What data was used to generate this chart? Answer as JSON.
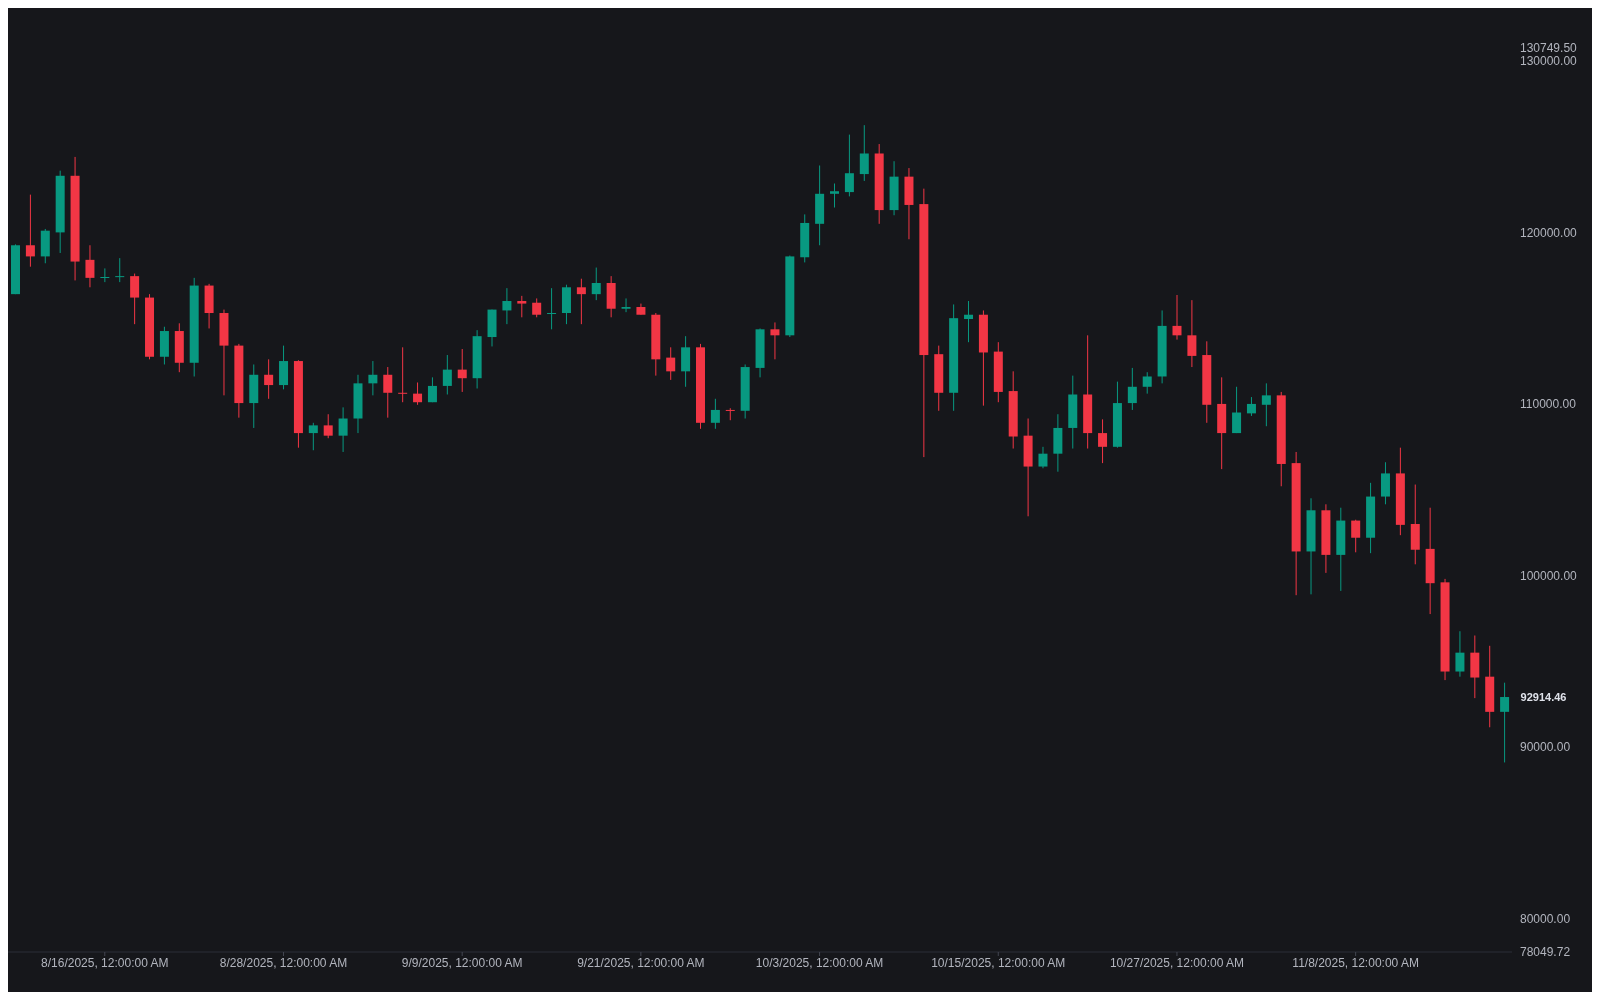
{
  "chart_data": {
    "type": "candlestick",
    "x": [
      "2025-08-10",
      "2025-08-11",
      "2025-08-12",
      "2025-08-13",
      "2025-08-14",
      "2025-08-15",
      "2025-08-16",
      "2025-08-17",
      "2025-08-18",
      "2025-08-19",
      "2025-08-20",
      "2025-08-21",
      "2025-08-22",
      "2025-08-23",
      "2025-08-24",
      "2025-08-25",
      "2025-08-26",
      "2025-08-27",
      "2025-08-28",
      "2025-08-29",
      "2025-08-30",
      "2025-08-31",
      "2025-09-01",
      "2025-09-02",
      "2025-09-03",
      "2025-09-04",
      "2025-09-05",
      "2025-09-06",
      "2025-09-07",
      "2025-09-08",
      "2025-09-09",
      "2025-09-10",
      "2025-09-11",
      "2025-09-12",
      "2025-09-13",
      "2025-09-14",
      "2025-09-15",
      "2025-09-16",
      "2025-09-17",
      "2025-09-18",
      "2025-09-19",
      "2025-09-20",
      "2025-09-21",
      "2025-09-22",
      "2025-09-23",
      "2025-09-24",
      "2025-09-25",
      "2025-09-26",
      "2025-09-27",
      "2025-09-28",
      "2025-09-29",
      "2025-09-30",
      "2025-10-01",
      "2025-10-02",
      "2025-10-03",
      "2025-10-04",
      "2025-10-05",
      "2025-10-06",
      "2025-10-07",
      "2025-10-08",
      "2025-10-09",
      "2025-10-10",
      "2025-10-11",
      "2025-10-12",
      "2025-10-13",
      "2025-10-14",
      "2025-10-15",
      "2025-10-16",
      "2025-10-17",
      "2025-10-18",
      "2025-10-19",
      "2025-10-20",
      "2025-10-21",
      "2025-10-22",
      "2025-10-23",
      "2025-10-24",
      "2025-10-25",
      "2025-10-26",
      "2025-10-27",
      "2025-10-28",
      "2025-10-29",
      "2025-10-30",
      "2025-10-31",
      "2025-11-01",
      "2025-11-02",
      "2025-11-03",
      "2025-11-04",
      "2025-11-05",
      "2025-11-06",
      "2025-11-07",
      "2025-11-08",
      "2025-11-09",
      "2025-11-10",
      "2025-11-11",
      "2025-11-12",
      "2025-11-13",
      "2025-11-14",
      "2025-11-15",
      "2025-11-16",
      "2025-11-17",
      "2025-11-18"
    ],
    "ohlc": [
      [
        116400,
        119300,
        116400,
        119250
      ],
      [
        119250,
        122200,
        118000,
        118600
      ],
      [
        118600,
        120200,
        118200,
        120100
      ],
      [
        120000,
        123600,
        118800,
        123300
      ],
      [
        123300,
        124400,
        117200,
        118300
      ],
      [
        118400,
        119250,
        116800,
        117350
      ],
      [
        117350,
        117900,
        117100,
        117400
      ],
      [
        117400,
        118500,
        117100,
        117450
      ],
      [
        117450,
        117600,
        114650,
        116200
      ],
      [
        116200,
        116400,
        112600,
        112750
      ],
      [
        112750,
        114500,
        112300,
        114250
      ],
      [
        114250,
        114700,
        111850,
        112400
      ],
      [
        112400,
        117350,
        111600,
        116900
      ],
      [
        116900,
        117000,
        114400,
        115300
      ],
      [
        115300,
        115500,
        110500,
        113400
      ],
      [
        113400,
        113500,
        109200,
        110050
      ],
      [
        110050,
        112300,
        108600,
        111700
      ],
      [
        111700,
        112600,
        110300,
        111100
      ],
      [
        111100,
        113400,
        110850,
        112500
      ],
      [
        112500,
        112550,
        107450,
        108300
      ],
      [
        108300,
        108900,
        107300,
        108750
      ],
      [
        108750,
        109400,
        108000,
        108150
      ],
      [
        108150,
        109800,
        107200,
        109150
      ],
      [
        109150,
        111700,
        108300,
        111200
      ],
      [
        111200,
        112500,
        110500,
        111700
      ],
      [
        111700,
        112150,
        109200,
        110650
      ],
      [
        110650,
        113300,
        110100,
        110600
      ],
      [
        110600,
        111250,
        109950,
        110100
      ],
      [
        110100,
        111550,
        110100,
        111050
      ],
      [
        111050,
        112850,
        110550,
        112000
      ],
      [
        112000,
        113200,
        110700,
        111500
      ],
      [
        111500,
        114300,
        110900,
        113950
      ],
      [
        113900,
        115500,
        113350,
        115500
      ],
      [
        115450,
        116750,
        114650,
        116000
      ],
      [
        116000,
        116300,
        115050,
        115850
      ],
      [
        115900,
        116150,
        115050,
        115200
      ],
      [
        115250,
        116750,
        114350,
        115300
      ],
      [
        115300,
        116950,
        114650,
        116800
      ],
      [
        116800,
        117300,
        114650,
        116400
      ],
      [
        116400,
        117950,
        116050,
        117050
      ],
      [
        117050,
        117450,
        115050,
        115550
      ],
      [
        115550,
        116150,
        115350,
        115650
      ],
      [
        115650,
        115850,
        115200,
        115200
      ],
      [
        115200,
        115300,
        111650,
        112600
      ],
      [
        112700,
        113300,
        111400,
        111900
      ],
      [
        111900,
        113950,
        111000,
        113300
      ],
      [
        113300,
        113500,
        108550,
        108900
      ],
      [
        108900,
        110300,
        108550,
        109650
      ],
      [
        109650,
        109750,
        109050,
        109600
      ],
      [
        109600,
        112300,
        109150,
        112150
      ],
      [
        112100,
        114400,
        111550,
        114350
      ],
      [
        114350,
        114750,
        112600,
        114000
      ],
      [
        114000,
        118650,
        113900,
        118600
      ],
      [
        118550,
        121050,
        118250,
        120550
      ],
      [
        120500,
        123900,
        119250,
        122250
      ],
      [
        122250,
        122850,
        121450,
        122400
      ],
      [
        122350,
        125700,
        122100,
        123450
      ],
      [
        123400,
        126250,
        123000,
        124600
      ],
      [
        124600,
        125150,
        120500,
        121300
      ],
      [
        121300,
        124150,
        121000,
        123250
      ],
      [
        123250,
        123750,
        119600,
        121600
      ],
      [
        121650,
        122550,
        106900,
        112850
      ],
      [
        112900,
        113400,
        109600,
        110650
      ],
      [
        110650,
        115800,
        109600,
        115000
      ],
      [
        114950,
        116000,
        113600,
        115200
      ],
      [
        115200,
        115450,
        109900,
        113000
      ],
      [
        113050,
        113600,
        110100,
        110700
      ],
      [
        110750,
        111900,
        107400,
        108100
      ],
      [
        108150,
        109150,
        103450,
        106350
      ],
      [
        106350,
        107500,
        106250,
        107100
      ],
      [
        107100,
        109400,
        106050,
        108600
      ],
      [
        108600,
        111650,
        107400,
        110550
      ],
      [
        110550,
        114000,
        107400,
        108300
      ],
      [
        108300,
        109100,
        106550,
        107500
      ],
      [
        107500,
        111300,
        107450,
        110050
      ],
      [
        110050,
        112100,
        109650,
        111000
      ],
      [
        111000,
        111850,
        110600,
        111600
      ],
      [
        111600,
        115450,
        111200,
        114550
      ],
      [
        114550,
        116350,
        113750,
        114000
      ],
      [
        114000,
        116050,
        112150,
        112800
      ],
      [
        112850,
        113650,
        108900,
        109950
      ],
      [
        110000,
        111550,
        106200,
        108300
      ],
      [
        108300,
        111000,
        108300,
        109500
      ],
      [
        109450,
        110400,
        109300,
        110000
      ],
      [
        109950,
        111200,
        108700,
        110500
      ],
      [
        110500,
        110700,
        105200,
        106500
      ],
      [
        106550,
        107200,
        98850,
        101400
      ],
      [
        101400,
        104500,
        98900,
        103800
      ],
      [
        103800,
        104150,
        100150,
        101200
      ],
      [
        101200,
        103950,
        99100,
        103200
      ],
      [
        103200,
        103250,
        101350,
        102200
      ],
      [
        102200,
        105400,
        101300,
        104600
      ],
      [
        104600,
        106600,
        104150,
        105950
      ],
      [
        105950,
        107450,
        102350,
        102950
      ],
      [
        103000,
        105300,
        100650,
        101500
      ],
      [
        101550,
        103950,
        97750,
        99550
      ],
      [
        99600,
        99800,
        93900,
        94400
      ],
      [
        94400,
        96750,
        94100,
        95500
      ],
      [
        95500,
        96500,
        92850,
        94050
      ],
      [
        94100,
        95900,
        91150,
        92050
      ],
      [
        92050,
        93750,
        89100,
        92914.46
      ]
    ],
    "colors": [
      "#089981",
      "#f23645",
      "#089981",
      "#089981",
      "#f23645",
      "#f23645",
      "#089981",
      "#089981",
      "#f23645",
      "#f23645",
      "#089981",
      "#f23645",
      "#089981",
      "#f23645",
      "#f23645",
      "#f23645",
      "#089981",
      "#f23645",
      "#089981",
      "#f23645",
      "#089981",
      "#f23645",
      "#089981",
      "#089981",
      "#089981",
      "#f23645",
      "#f23645",
      "#f23645",
      "#089981",
      "#089981",
      "#f23645",
      "#089981",
      "#089981",
      "#089981",
      "#f23645",
      "#f23645",
      "#089981",
      "#089981",
      "#f23645",
      "#089981",
      "#f23645",
      "#089981",
      "#f23645",
      "#f23645",
      "#f23645",
      "#089981",
      "#f23645",
      "#089981",
      "#f23645",
      "#089981",
      "#089981",
      "#f23645",
      "#089981",
      "#089981",
      "#089981",
      "#089981",
      "#089981",
      "#089981",
      "#f23645",
      "#089981",
      "#f23645",
      "#f23645",
      "#f23645",
      "#089981",
      "#089981",
      "#f23645",
      "#f23645",
      "#f23645",
      "#f23645",
      "#089981",
      "#089981",
      "#089981",
      "#f23645",
      "#f23645",
      "#089981",
      "#089981",
      "#089981",
      "#089981",
      "#f23645",
      "#f23645",
      "#f23645",
      "#f23645",
      "#089981",
      "#089981",
      "#089981",
      "#f23645",
      "#f23645",
      "#089981",
      "#f23645",
      "#089981",
      "#f23645",
      "#089981",
      "#089981",
      "#f23645",
      "#f23645",
      "#f23645",
      "#f23645",
      "#089981",
      "#f23645",
      "#f23645",
      "#089981"
    ],
    "xticks": [
      {
        "value": "2025-08-16",
        "label": "8/16/2025, 12:00:00 AM"
      },
      {
        "value": "2025-08-28",
        "label": "8/28/2025, 12:00:00 AM"
      },
      {
        "value": "2025-09-09",
        "label": "9/9/2025, 12:00:00 AM"
      },
      {
        "value": "2025-09-21",
        "label": "9/21/2025, 12:00:00 AM"
      },
      {
        "value": "2025-10-03",
        "label": "10/3/2025, 12:00:00 AM"
      },
      {
        "value": "2025-10-15",
        "label": "10/15/2025, 12:00:00 AM"
      },
      {
        "value": "2025-10-27",
        "label": "10/27/2025, 12:00:00 AM"
      },
      {
        "value": "2025-11-08",
        "label": "11/8/2025, 12:00:00 AM"
      }
    ],
    "xlim": [
      "2025-08-09T12:00",
      "2025-11-18T12:00"
    ],
    "ylim": [
      78049.72,
      130749.5
    ],
    "yticks": [
      {
        "value": 78049.72,
        "label": "78049.72"
      },
      {
        "value": 80000,
        "label": "80000.00"
      },
      {
        "value": 90000,
        "label": "90000.00"
      },
      {
        "value": 100000,
        "label": "100000.00"
      },
      {
        "value": 110000,
        "label": "110000.00"
      },
      {
        "value": 120000,
        "label": "120000.00"
      },
      {
        "value": 130000,
        "label": "130000.00"
      },
      {
        "value": 130749.5,
        "label": "130749.50"
      }
    ],
    "annotations": [
      {
        "text": "92914.46",
        "x": "2025-11-18",
        "y": 92914.46
      }
    ]
  }
}
